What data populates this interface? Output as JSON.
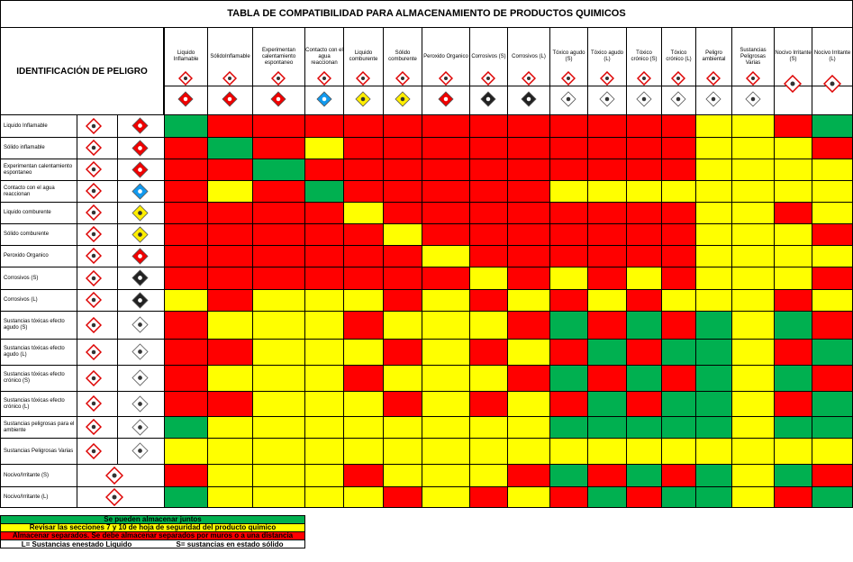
{
  "title": "TABLA DE COMPATIBILIDAD PARA ALMACENAMIENTO DE PRODUCTOS QUIMICOS",
  "header_left": "IDENTIFICACIÓN DE PELIGRO",
  "columns": [
    "Liquido Inflamable",
    "SólidoInflamable",
    "Experimentan calentamiento espontaneo",
    "Contacto con el agua reaccionan",
    "Liquido comburente",
    "Sólido comburente",
    "Peroxido Organico",
    "Corrosivos (S)",
    "Corrosivos (L)",
    "Tóxico agudo (S)",
    "Tóxico agudo (L)",
    "Tóxico crónico (S)",
    "Tóxico crónico (L)",
    "Peligro ambiental",
    "Sustancias Peligrosas Varias",
    "Nocivo Irritante (S)",
    "Nocivo Irritante (L)"
  ],
  "rows": [
    "Liquido Inflamable",
    "Sólido inflamable",
    "Experimentan calentamiento espontaneo",
    "Contacto con el agua reaccionan",
    "Liquido comburente",
    "Sólido comburente",
    "Peroxido Organico",
    "Corrosivos (S)",
    "Corrosivos (L)",
    "Sustancias tóxicas efecto agudo (S)",
    "Sustancias tóxicas efecto agudo (L)",
    "Sustancias tóxicas efecto crónico (S)",
    "Sustancias tóxicas efecto crónico (L)",
    "Sustancias peligrosas para el ambiente",
    "Sustancias Peligrosas Varias",
    "Nocivo/Irritante (S)",
    "Nocivo/Irritante (L)"
  ],
  "matrix": [
    [
      "#00b050",
      "#ff0000",
      "#ff0000",
      "#ff0000",
      "#ff0000",
      "#ff0000",
      "#ff0000",
      "#ff0000",
      "#ff0000",
      "#ff0000",
      "#ff0000",
      "#ff0000",
      "#ff0000",
      "#ffff00",
      "#ffff00",
      "#ff0000",
      "#00b050"
    ],
    [
      "#ff0000",
      "#00b050",
      "#ff0000",
      "#ffff00",
      "#ff0000",
      "#ff0000",
      "#ff0000",
      "#ff0000",
      "#ff0000",
      "#ff0000",
      "#ff0000",
      "#ff0000",
      "#ff0000",
      "#ffff00",
      "#ffff00",
      "#ffff00",
      "#ff0000"
    ],
    [
      "#ff0000",
      "#ff0000",
      "#00b050",
      "#ff0000",
      "#ff0000",
      "#ff0000",
      "#ff0000",
      "#ff0000",
      "#ff0000",
      "#ff0000",
      "#ff0000",
      "#ff0000",
      "#ff0000",
      "#ffff00",
      "#ffff00",
      "#ffff00",
      "#ffff00"
    ],
    [
      "#ff0000",
      "#ffff00",
      "#ff0000",
      "#00b050",
      "#ff0000",
      "#ff0000",
      "#ff0000",
      "#ff0000",
      "#ff0000",
      "#ffff00",
      "#ffff00",
      "#ffff00",
      "#ffff00",
      "#ffff00",
      "#ffff00",
      "#ffff00",
      "#ffff00"
    ],
    [
      "#ff0000",
      "#ff0000",
      "#ff0000",
      "#ff0000",
      "#ffff00",
      "#ff0000",
      "#ff0000",
      "#ff0000",
      "#ff0000",
      "#ff0000",
      "#ff0000",
      "#ff0000",
      "#ff0000",
      "#ffff00",
      "#ffff00",
      "#ff0000",
      "#ffff00"
    ],
    [
      "#ff0000",
      "#ff0000",
      "#ff0000",
      "#ff0000",
      "#ff0000",
      "#ffff00",
      "#ff0000",
      "#ff0000",
      "#ff0000",
      "#ff0000",
      "#ff0000",
      "#ff0000",
      "#ff0000",
      "#ffff00",
      "#ffff00",
      "#ffff00",
      "#ff0000"
    ],
    [
      "#ff0000",
      "#ff0000",
      "#ff0000",
      "#ff0000",
      "#ff0000",
      "#ff0000",
      "#ffff00",
      "#ff0000",
      "#ff0000",
      "#ff0000",
      "#ff0000",
      "#ff0000",
      "#ff0000",
      "#ffff00",
      "#ffff00",
      "#ffff00",
      "#ffff00"
    ],
    [
      "#ff0000",
      "#ff0000",
      "#ff0000",
      "#ff0000",
      "#ff0000",
      "#ff0000",
      "#ff0000",
      "#ffff00",
      "#ff0000",
      "#ffff00",
      "#ff0000",
      "#ffff00",
      "#ff0000",
      "#ffff00",
      "#ffff00",
      "#ffff00",
      "#ff0000"
    ],
    [
      "#ffff00",
      "#ff0000",
      "#ffff00",
      "#ffff00",
      "#ffff00",
      "#ff0000",
      "#ffff00",
      "#ff0000",
      "#ffff00",
      "#ff0000",
      "#ffff00",
      "#ff0000",
      "#ffff00",
      "#ffff00",
      "#ffff00",
      "#ff0000",
      "#ffff00"
    ],
    [
      "#ff0000",
      "#ffff00",
      "#ffff00",
      "#ffff00",
      "#ff0000",
      "#ffff00",
      "#ffff00",
      "#ffff00",
      "#ff0000",
      "#00b050",
      "#ff0000",
      "#00b050",
      "#ff0000",
      "#00b050",
      "#ffff00",
      "#00b050",
      "#ff0000"
    ],
    [
      "#ff0000",
      "#ff0000",
      "#ffff00",
      "#ffff00",
      "#ffff00",
      "#ff0000",
      "#ffff00",
      "#ff0000",
      "#ffff00",
      "#ff0000",
      "#00b050",
      "#ff0000",
      "#00b050",
      "#00b050",
      "#ffff00",
      "#ff0000",
      "#00b050"
    ],
    [
      "#ff0000",
      "#ffff00",
      "#ffff00",
      "#ffff00",
      "#ff0000",
      "#ffff00",
      "#ffff00",
      "#ffff00",
      "#ff0000",
      "#00b050",
      "#ff0000",
      "#00b050",
      "#ff0000",
      "#00b050",
      "#ffff00",
      "#00b050",
      "#ff0000"
    ],
    [
      "#ff0000",
      "#ff0000",
      "#ffff00",
      "#ffff00",
      "#ffff00",
      "#ff0000",
      "#ffff00",
      "#ff0000",
      "#ffff00",
      "#ff0000",
      "#00b050",
      "#ff0000",
      "#00b050",
      "#00b050",
      "#ffff00",
      "#ff0000",
      "#00b050"
    ],
    [
      "#00b050",
      "#ffff00",
      "#ffff00",
      "#ffff00",
      "#ffff00",
      "#ffff00",
      "#ffff00",
      "#ffff00",
      "#ffff00",
      "#00b050",
      "#00b050",
      "#00b050",
      "#00b050",
      "#00b050",
      "#ffff00",
      "#00b050",
      "#00b050"
    ],
    [
      "#ffff00",
      "#ffff00",
      "#ffff00",
      "#ffff00",
      "#ffff00",
      "#ffff00",
      "#ffff00",
      "#ffff00",
      "#ffff00",
      "#ffff00",
      "#ffff00",
      "#ffff00",
      "#ffff00",
      "#ffff00",
      "#ffff00",
      "#ffff00",
      "#ffff00"
    ],
    [
      "#ff0000",
      "#ffff00",
      "#ffff00",
      "#ffff00",
      "#ff0000",
      "#ffff00",
      "#ffff00",
      "#ffff00",
      "#ff0000",
      "#00b050",
      "#ff0000",
      "#00b050",
      "#ff0000",
      "#00b050",
      "#ffff00",
      "#00b050",
      "#ff0000"
    ],
    [
      "#00b050",
      "#ffff00",
      "#ffff00",
      "#ffff00",
      "#ffff00",
      "#ff0000",
      "#ffff00",
      "#ff0000",
      "#ffff00",
      "#ff0000",
      "#00b050",
      "#ff0000",
      "#00b050",
      "#00b050",
      "#ffff00",
      "#ff0000",
      "#00b050"
    ]
  ],
  "legend": [
    {
      "color": "#00b050",
      "text": "Se pueden almacenar juntos"
    },
    {
      "color": "#ffff00",
      "text": "Revisar las secciones 7 y 10 de hoja de seguridad del producto quimico"
    },
    {
      "color": "#ff0000",
      "text": "Almacenar separados. Se debe almacenar separados por muros o a una distancia"
    }
  ],
  "notes": [
    "L= Sustancias enestado Liquido",
    "S= sustancias en estado sólido"
  ]
}
